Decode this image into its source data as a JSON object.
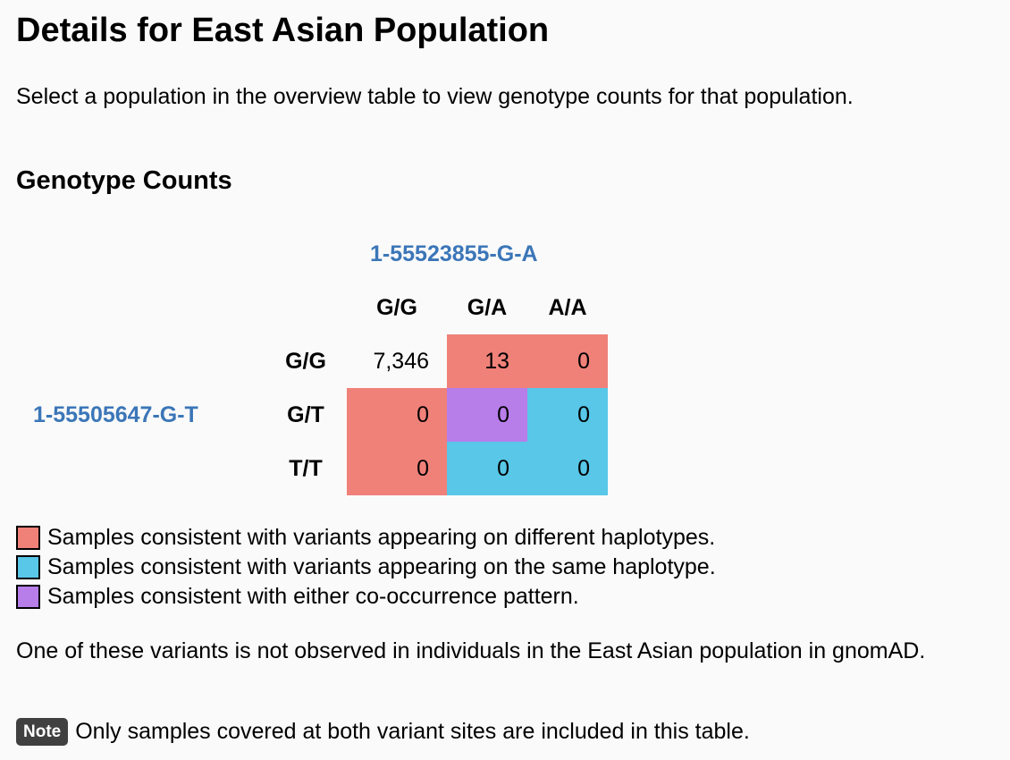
{
  "page": {
    "title": "Details for East Asian Population",
    "intro": "Select a population in the overview table to view genotype counts for that population."
  },
  "section": {
    "title": "Genotype Counts"
  },
  "table": {
    "variant_col": "1-55523855-G-A",
    "variant_row": "1-55505647-G-T",
    "col_headers": [
      "G/G",
      "G/A",
      "A/A"
    ],
    "row_headers": [
      "G/G",
      "G/T",
      "T/T"
    ],
    "cells": [
      [
        "7,346",
        "13",
        "0"
      ],
      [
        "0",
        "0",
        "0"
      ],
      [
        "0",
        "0",
        "0"
      ]
    ],
    "cell_colors": [
      [
        "none",
        "red",
        "red"
      ],
      [
        "red",
        "purple",
        "blue"
      ],
      [
        "red",
        "blue",
        "blue"
      ]
    ]
  },
  "colors": {
    "red": "#f08179",
    "blue": "#58c7e8",
    "purple": "#b77de9",
    "link": "#3b76b8"
  },
  "legend": [
    {
      "color": "red",
      "label": "Samples consistent with variants appearing on different haplotypes."
    },
    {
      "color": "blue",
      "label": "Samples consistent with variants appearing on the same haplotype."
    },
    {
      "color": "purple",
      "label": "Samples consistent with either co-occurrence pattern."
    }
  ],
  "notice": "One of these variants is not observed in individuals in the East Asian population in gnomAD.",
  "note": {
    "badge": "Note",
    "text": "Only samples covered at both variant sites are included in this table."
  }
}
